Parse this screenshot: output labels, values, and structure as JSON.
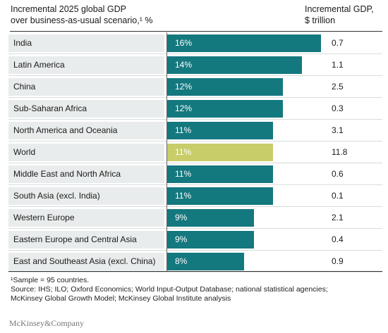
{
  "header": {
    "left_line1": "Incremental 2025 global GDP",
    "left_line2": "over business-as-usual scenario,¹ %",
    "right_line1": "Incremental GDP,",
    "right_line2": "$ trillion"
  },
  "colors": {
    "bar": "#14787f",
    "highlight": "#c8cd6a",
    "row_label_bg": "#e9ecec"
  },
  "chart_data": {
    "type": "bar",
    "orientation": "horizontal",
    "categories": [
      "India",
      "Latin America",
      "China",
      "Sub-Saharan Africa",
      "North America and Oceania",
      "World",
      "Middle East and North Africa",
      "South Asia (excl. India)",
      "Western Europe",
      "Eastern Europe and Central Asia",
      "East and Southeast Asia (excl. China)"
    ],
    "values": [
      16,
      14,
      12,
      12,
      11,
      11,
      11,
      11,
      9,
      9,
      8
    ],
    "value_labels": [
      "16%",
      "14%",
      "12%",
      "12%",
      "11%",
      "11%",
      "11%",
      "11%",
      "9%",
      "9%",
      "8%"
    ],
    "incremental_gdp_trillion": [
      "0.7",
      "1.1",
      "2.5",
      "0.3",
      "3.1",
      "11.8",
      "0.6",
      "0.1",
      "2.1",
      "0.4",
      "0.9"
    ],
    "highlight": "World",
    "xlim": [
      0,
      16
    ]
  },
  "footnotes": {
    "line1": "¹Sample = 95 countries.",
    "line2": "Source: IHS; ILO; Oxford Economics; World Input-Output Database; national statistical agencies;",
    "line3": "McKinsey Global Growth Model; McKinsey Global Institute analysis"
  },
  "brand": "McKinsey&Company"
}
